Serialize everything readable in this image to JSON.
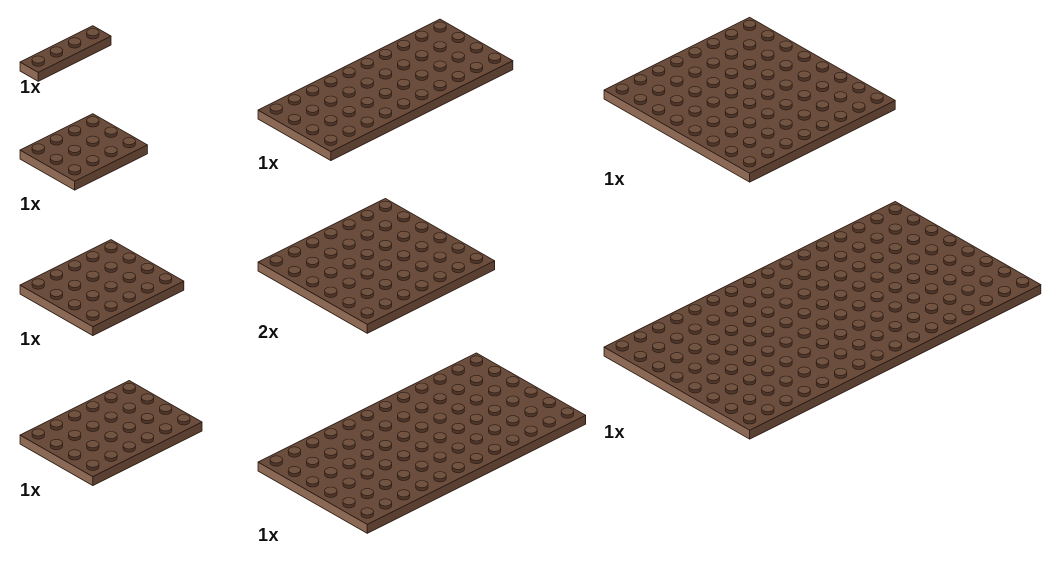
{
  "colors": {
    "top": "#6b4e3e",
    "left": "#8a6a56",
    "right": "#5a4033",
    "stud_top": "#725443",
    "stud_side": "#4e362a",
    "outline": "#2a1a12"
  },
  "parts": [
    {
      "name": "plate-1x4",
      "width": 1,
      "length": 4,
      "quantity": "1x"
    },
    {
      "name": "plate-3x4",
      "width": 3,
      "length": 4,
      "quantity": "1x"
    },
    {
      "name": "plate-4x5",
      "width": 4,
      "length": 5,
      "quantity": "1x"
    },
    {
      "name": "plate-4x6",
      "width": 4,
      "length": 6,
      "quantity": "1x"
    },
    {
      "name": "plate-4x10",
      "width": 4,
      "length": 10,
      "quantity": "1x"
    },
    {
      "name": "plate-6x7",
      "width": 6,
      "length": 7,
      "quantity": "2x"
    },
    {
      "name": "plate-6x12",
      "width": 6,
      "length": 12,
      "quantity": "1x"
    },
    {
      "name": "plate-8x8",
      "width": 8,
      "length": 8,
      "quantity": "1x"
    },
    {
      "name": "plate-8x16",
      "width": 8,
      "length": 16,
      "quantity": "1x"
    }
  ]
}
